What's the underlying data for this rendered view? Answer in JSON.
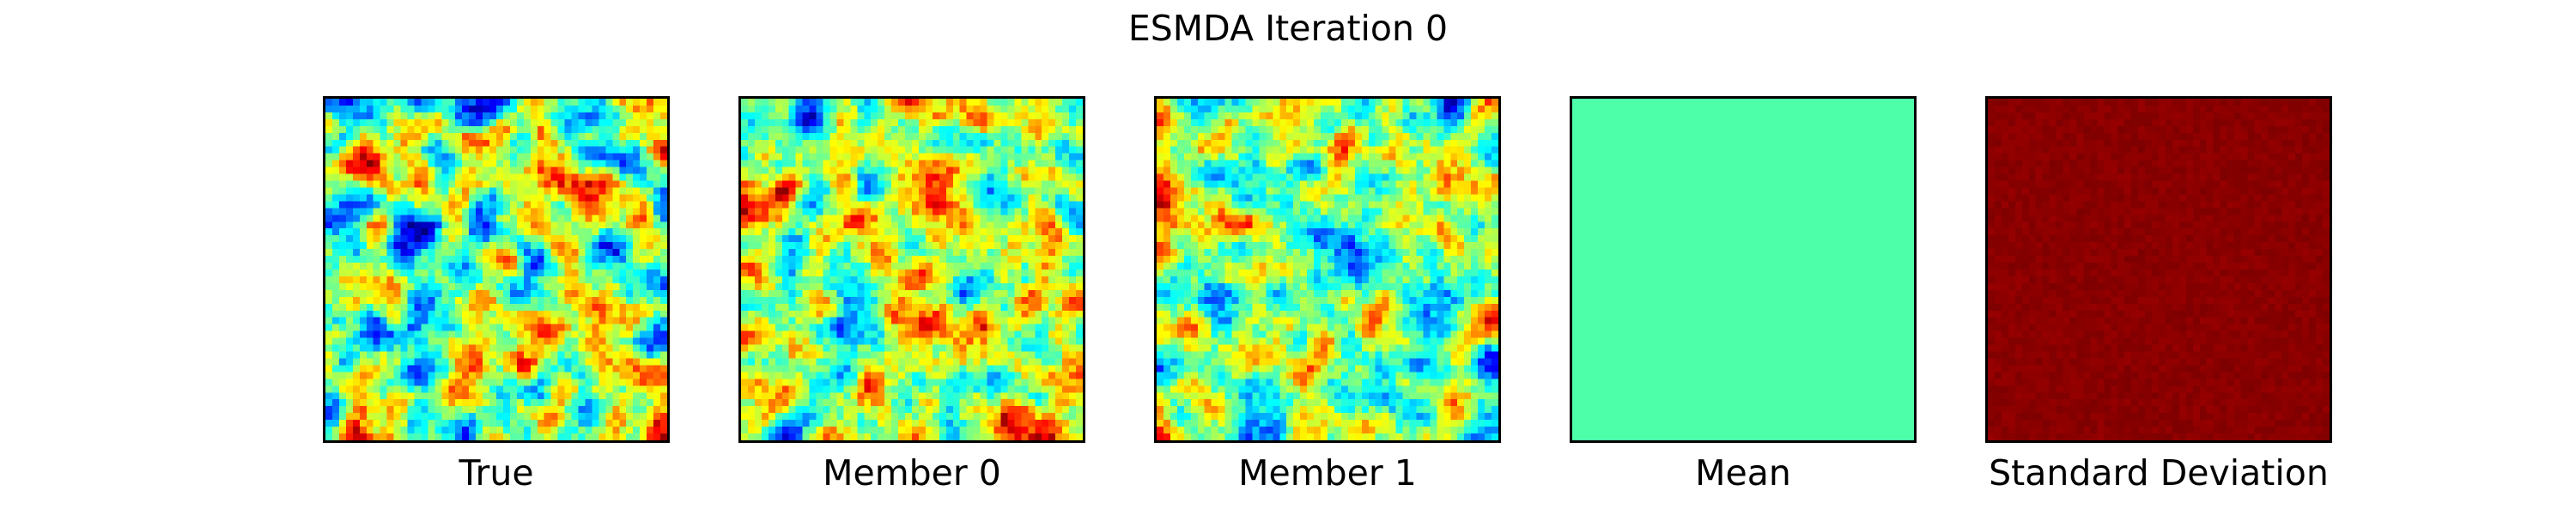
{
  "figure": {
    "title": "ESMDA Iteration 0"
  },
  "chart_data": [
    {
      "type": "heatmap",
      "label": "True",
      "colormap": "jet",
      "grid": [
        50,
        50
      ],
      "field": "random",
      "seed": 11,
      "smoothness": 3,
      "grid_lines": false
    },
    {
      "type": "heatmap",
      "label": "Member 0",
      "colormap": "jet",
      "grid": [
        50,
        50
      ],
      "field": "random",
      "seed": 23,
      "smoothness": 3,
      "grid_lines": false
    },
    {
      "type": "heatmap",
      "label": "Member 1",
      "colormap": "jet",
      "grid": [
        50,
        50
      ],
      "field": "random",
      "seed": 37,
      "smoothness": 3,
      "grid_lines": false
    },
    {
      "type": "heatmap",
      "label": "Mean",
      "colormap": "jet",
      "grid": [
        50,
        50
      ],
      "field": "uniform",
      "color": "#4dffa9",
      "grid_lines": false
    },
    {
      "type": "heatmap",
      "label": "Standard Deviation",
      "colormap": "jet",
      "grid": [
        50,
        50
      ],
      "field": "dark-red",
      "seed": 53,
      "color": "#8a0000",
      "grid_lines": false
    }
  ]
}
